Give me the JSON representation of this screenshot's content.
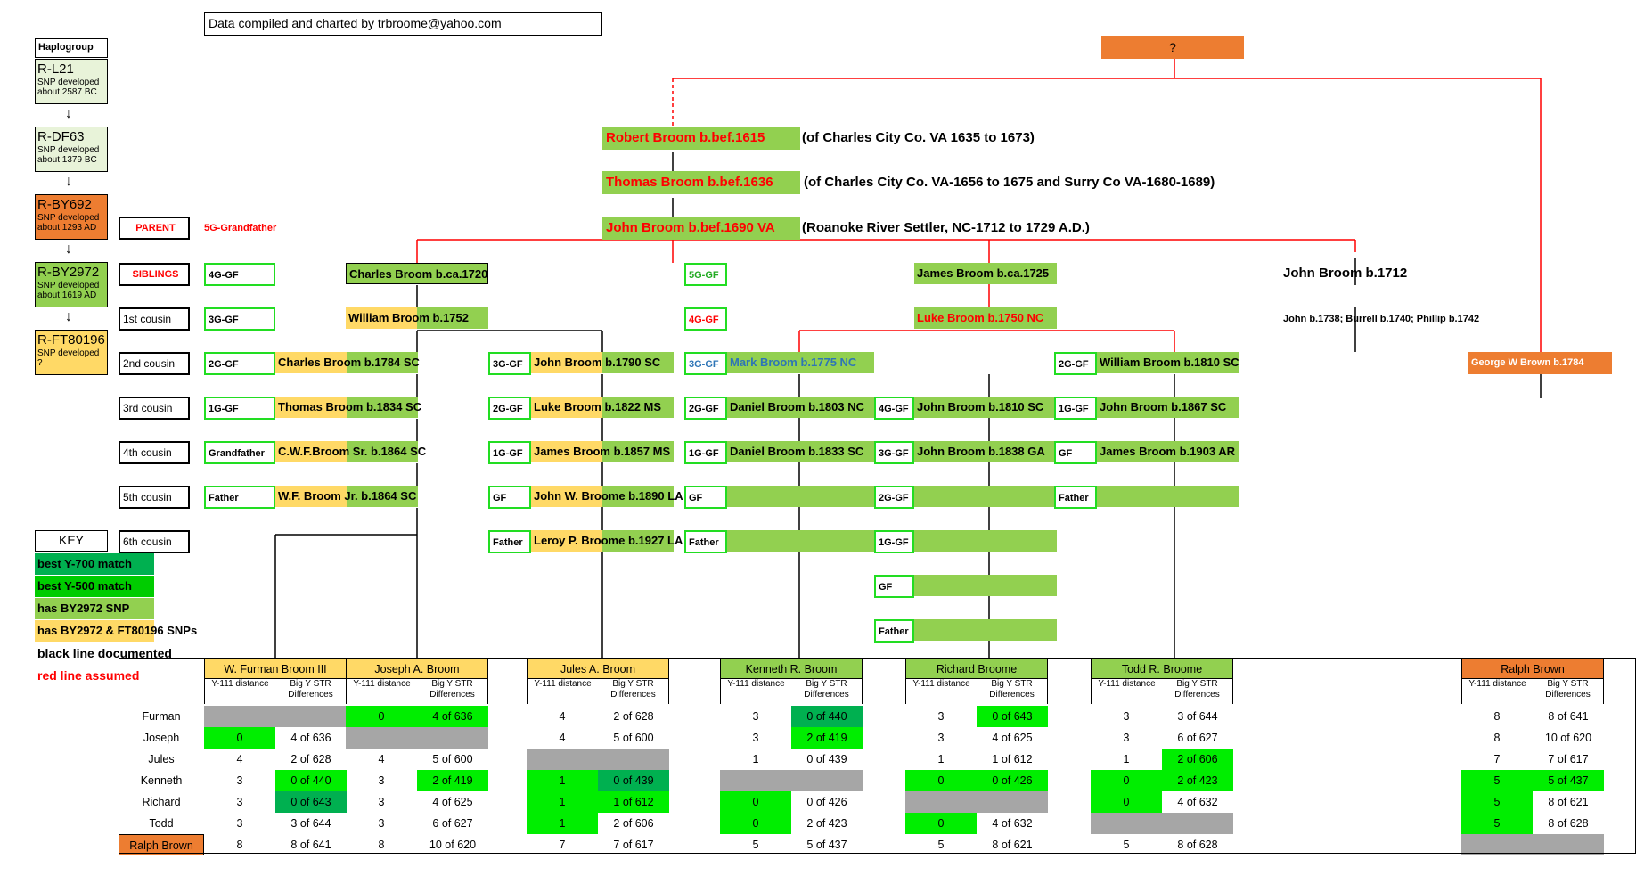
{
  "credit": "Data compiled and charted by trbroome@yahoo.com",
  "root": "?",
  "haplo_title": "Haplogroup",
  "haplogroups": [
    {
      "name": "R-L21",
      "line1": "SNP developed",
      "line2": "about 2587 BC",
      "color": "#e8f3d9"
    },
    {
      "name": "R-DF63",
      "line1": "SNP developed",
      "line2": "about 1379 BC",
      "color": "#e8f3d9"
    },
    {
      "name": "R-BY692",
      "line1": "SNP developed",
      "line2": "about 1293 AD",
      "color": "#ed7d31"
    },
    {
      "name": "R-BY2972",
      "line1": "SNP developed",
      "line2": "about 1619 AD",
      "color": "#92d050"
    },
    {
      "name": "R-FT80196",
      "line1": "SNP developed",
      "line2": "?",
      "color": "#ffd966"
    }
  ],
  "arrow": "↓",
  "ancestors": [
    {
      "name": "Robert Broom b.bef.1615",
      "note": "(of Charles City Co. VA 1635 to 1673)"
    },
    {
      "name": "Thomas Broom b.bef.1636",
      "note": "(of Charles City Co. VA-1656 to 1675 and Surry Co VA-1680-1689)"
    },
    {
      "name": "John Broom b.bef.1690 VA",
      "note": "(Roanoke River Settler, NC-1712 to 1729 A.D.)"
    }
  ],
  "rel_labels": {
    "parent": "PARENT",
    "siblings": "SIBLINGS",
    "c1": "1st cousin",
    "c2": "2nd cousin",
    "c3": "3rd cousin",
    "c4": "4th cousin",
    "c5": "5th cousin",
    "c6": "6th cousin"
  },
  "parent_note": "5G-Grandfather",
  "john1712": {
    "name": "John Broom b.1712",
    "kids": "John b.1738; Burrell b.1740; Phillip b.1742"
  },
  "george": "George W Brown b.1784",
  "col1": {
    "labels": [
      "4G-GF",
      "3G-GF",
      "2G-GF",
      "1G-GF",
      "Grandfather",
      "Father"
    ],
    "names": [
      "Charles Broom b.ca.1720",
      "William Broom b.1752",
      "Charles Broom b.1784 SC",
      "Thomas Broom b.1834 SC",
      "C.W.F.Broom Sr. b.1864 SC",
      "W.F. Broom Jr. b.1864 SC"
    ]
  },
  "col2": {
    "labels": [
      "3G-GF",
      "2G-GF",
      "1G-GF",
      "GF",
      "Father"
    ],
    "names": [
      "John Broom b.1790 SC",
      "Luke Broom b.1822 MS",
      "James Broom b.1857 MS",
      "John W. Broome b.1890 LA",
      "Leroy P. Broome b.1927 LA"
    ]
  },
  "col3": {
    "labels": [
      "5G-GF",
      "4G-GF",
      "3G-GF",
      "2G-GF",
      "1G-GF",
      "GF",
      "Father"
    ],
    "names": [
      "",
      "",
      "Mark Broom b.1775 NC",
      "Daniel Broom b.1803 NC",
      "Daniel Broom b.1833 SC",
      "",
      ""
    ]
  },
  "col4": {
    "name_top": "James Broom b.ca.1725",
    "name_luke": "Luke Broom b.1750 NC",
    "labels": [
      "4G-GF",
      "3G-GF",
      "2G-GF",
      "1G-GF",
      "GF",
      "Father"
    ],
    "names": [
      "John Broom b.1810 SC",
      "John Broom b.1838 GA",
      "",
      "",
      "",
      ""
    ]
  },
  "col5": {
    "labels": [
      "2G-GF",
      "1G-GF",
      "GF",
      "Father"
    ],
    "names": [
      "William Broom b.1810 SC",
      "John Broom b.1867 SC",
      "James Broom b.1903 AR",
      ""
    ]
  },
  "key_title": "KEY",
  "key": [
    {
      "text": "best Y-700 match",
      "bg": "#00b050",
      "color": "#000"
    },
    {
      "text": "best Y-500 match",
      "bg": "#00cc00",
      "color": "#000"
    },
    {
      "text": "has BY2972 SNP",
      "bg": "#92d050",
      "color": "#000"
    },
    {
      "text": "has BY2972 & FT80196 SNPs",
      "bg": "#ffd966",
      "color": "#000"
    },
    {
      "text": "black line documented",
      "bg": "#fff",
      "color": "#000"
    },
    {
      "text": "red line assumed",
      "bg": "#fff",
      "color": "#ff0000"
    }
  ],
  "table": {
    "subheaders": [
      "Y-111 distance",
      "Big Y STR Differences"
    ],
    "columns": [
      {
        "name": "W. Furman Broom III",
        "color": "#ffd966"
      },
      {
        "name": "Joseph A. Broom",
        "color": "#ffd966"
      },
      {
        "name": "Jules A. Broom",
        "color": "#ffd966"
      },
      {
        "name": "Kenneth R. Broom",
        "color": "#92d050"
      },
      {
        "name": "Richard Broome",
        "color": "#92d050"
      },
      {
        "name": "Todd R. Broome",
        "color": "#92d050"
      },
      {
        "name": "Ralph Brown",
        "color": "#ed7d31"
      }
    ],
    "rows": [
      "Furman",
      "Joseph",
      "Jules",
      "Kenneth",
      "Richard",
      "Todd",
      "Ralph Brown"
    ],
    "cells": [
      [
        [
          "",
          ""
        ],
        [
          "0",
          "4 of 636"
        ],
        [
          "4",
          "2 of 628"
        ],
        [
          "3",
          "0 of 440"
        ],
        [
          "3",
          "0 of 643"
        ],
        [
          "3",
          "3 of 644"
        ],
        [
          "8",
          "8 of 641"
        ]
      ],
      [
        [
          "0",
          "4 of 636"
        ],
        [
          "",
          ""
        ],
        [
          "4",
          "5 of 600"
        ],
        [
          "3",
          "2 of 419"
        ],
        [
          "3",
          "4 of 625"
        ],
        [
          "3",
          "6 of 627"
        ],
        [
          "8",
          "10 of 620"
        ]
      ],
      [
        [
          "4",
          "2 of 628"
        ],
        [
          "4",
          "5 of 600"
        ],
        [
          "",
          ""
        ],
        [
          "1",
          "0 of 439"
        ],
        [
          "1",
          "1 of 612"
        ],
        [
          "1",
          "2 of 606"
        ],
        [
          "7",
          "7 of 617"
        ]
      ],
      [
        [
          "3",
          "0 of 440"
        ],
        [
          "3",
          "2 of 419"
        ],
        [
          "1",
          "0 of 439"
        ],
        [
          "",
          ""
        ],
        [
          "0",
          "0 of 426"
        ],
        [
          "0",
          "2 of 423"
        ],
        [
          "5",
          "5 of 437"
        ]
      ],
      [
        [
          "3",
          "0 of 643"
        ],
        [
          "3",
          "4 of 625"
        ],
        [
          "1",
          "1 of 612"
        ],
        [
          "0",
          "0 of 426"
        ],
        [
          "",
          ""
        ],
        [
          "0",
          "4 of 632"
        ],
        [
          "5",
          "8 of 621"
        ]
      ],
      [
        [
          "3",
          "3 of 644"
        ],
        [
          "3",
          "6 of 627"
        ],
        [
          "1",
          "2 of 606"
        ],
        [
          "0",
          "2 of 423"
        ],
        [
          "0",
          "4 of 632"
        ],
        [
          "",
          ""
        ],
        [
          "5",
          "8 of 628"
        ]
      ],
      [
        [
          "8",
          "8 of 641"
        ],
        [
          "8",
          "10 of 620"
        ],
        [
          "7",
          "7 of 617"
        ],
        [
          "5",
          "5 of 437"
        ],
        [
          "5",
          "8 of 621"
        ],
        [
          "5",
          "8 of 628"
        ],
        [
          "",
          ""
        ]
      ]
    ]
  }
}
